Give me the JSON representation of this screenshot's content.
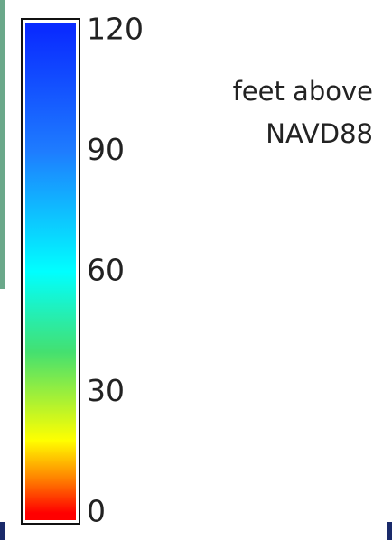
{
  "chart_data": {
    "type": "colorbar",
    "title_lines": [
      "feet above",
      "NAVD88"
    ],
    "ylim": [
      0,
      120
    ],
    "yticks": [
      0,
      30,
      60,
      90,
      120
    ],
    "grid": false,
    "colormap": [
      {
        "value": 0,
        "color": "#ff0000"
      },
      {
        "value": 8,
        "color": "#ff7a00"
      },
      {
        "value": 18,
        "color": "#ffff00"
      },
      {
        "value": 40,
        "color": "#44e070"
      },
      {
        "value": 60,
        "color": "#00ffff"
      },
      {
        "value": 90,
        "color": "#1e7cff"
      },
      {
        "value": 120,
        "color": "#0a2cff"
      }
    ]
  }
}
